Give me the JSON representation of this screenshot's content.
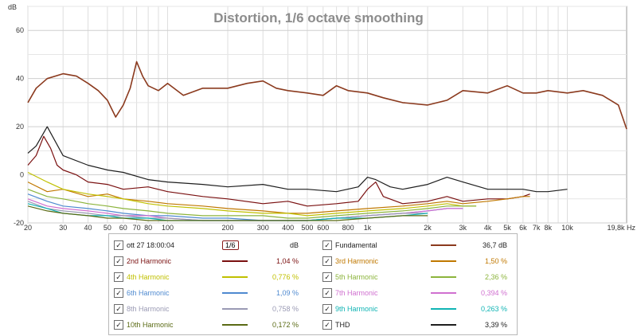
{
  "chart_data": {
    "type": "line",
    "title": "Distortion, 1/6 octave smoothing",
    "ylabel": "dB",
    "xlabel": "",
    "xscale": "log",
    "xlim": [
      20,
      19800
    ],
    "ylim": [
      -20,
      70
    ],
    "y_ticks": [
      60,
      40,
      20,
      0,
      -20
    ],
    "y_tick_labels": [
      "60",
      "40",
      "20",
      "0",
      "-20"
    ],
    "x_ticks": [
      20,
      30,
      40,
      50,
      60,
      70,
      80,
      100,
      200,
      300,
      400,
      500,
      600,
      800,
      1000,
      2000,
      3000,
      4000,
      5000,
      6000,
      7000,
      8000,
      10000,
      19800
    ],
    "x_tick_labels": [
      "20",
      "30",
      "40",
      "50",
      "60",
      "70",
      "80",
      "100",
      "200",
      "300",
      "400",
      "500",
      "600",
      "800",
      "1k",
      "2k",
      "3k",
      "4k",
      "5k",
      "6k",
      "7k",
      "8k",
      "10k",
      "19,8k Hz"
    ],
    "grid": true,
    "series": [
      {
        "name": "Fundamental",
        "color": "#8b3a1e",
        "x": [
          20,
          22,
          25,
          30,
          35,
          40,
          45,
          50,
          55,
          60,
          65,
          70,
          75,
          80,
          90,
          100,
          120,
          150,
          200,
          250,
          300,
          350,
          400,
          500,
          600,
          700,
          800,
          1000,
          1200,
          1500,
          2000,
          2500,
          3000,
          4000,
          5000,
          6000,
          7000,
          8000,
          10000,
          12000,
          15000,
          18000,
          19800
        ],
        "values": [
          30,
          36,
          40,
          42,
          41,
          38,
          35,
          31,
          24,
          29,
          36,
          47,
          41,
          37,
          35,
          38,
          33,
          36,
          36,
          38,
          39,
          36,
          35,
          34,
          33,
          37,
          35,
          34,
          32,
          30,
          29,
          31,
          35,
          34,
          37,
          34,
          34,
          35,
          34,
          35,
          33,
          29,
          19
        ]
      },
      {
        "name": "2nd Harmonic",
        "color": "#7a1010",
        "x": [
          20,
          22,
          24,
          26,
          28,
          30,
          35,
          40,
          50,
          60,
          80,
          100,
          150,
          200,
          300,
          400,
          500,
          700,
          900,
          1000,
          1100,
          1200,
          1500,
          2000,
          2500,
          3000,
          4000,
          5000,
          6000,
          6500
        ],
        "values": [
          4,
          8,
          16,
          11,
          4,
          2,
          0,
          -3,
          -4,
          -6,
          -5,
          -7,
          -9,
          -10,
          -12,
          -11,
          -13,
          -12,
          -11,
          -6,
          -3,
          -9,
          -12,
          -11,
          -9,
          -11,
          -10,
          -10,
          -9,
          -8
        ]
      },
      {
        "name": "3rd Harmonic",
        "color": "#c07800",
        "x": [
          20,
          25,
          30,
          40,
          50,
          60,
          80,
          100,
          150,
          200,
          300,
          400,
          500,
          700,
          1000,
          1500,
          2000,
          2500,
          3000,
          4000,
          5000,
          6000,
          6500
        ],
        "values": [
          -3,
          -7,
          -6,
          -9,
          -8,
          -10,
          -11,
          -12,
          -13,
          -14,
          -15,
          -16,
          -16,
          -15,
          -14,
          -13,
          -12,
          -11,
          -12,
          -11,
          -10,
          -9,
          -9
        ]
      },
      {
        "name": "4th Harmonic",
        "color": "#c0c000",
        "x": [
          20,
          25,
          30,
          40,
          50,
          60,
          80,
          100,
          150,
          200,
          300,
          400,
          500,
          700,
          1000,
          1500,
          2000,
          2500,
          3000,
          3500
        ],
        "values": [
          1,
          -3,
          -6,
          -8,
          -9,
          -10,
          -12,
          -13,
          -14,
          -15,
          -16,
          -16,
          -17,
          -16,
          -15,
          -14,
          -13,
          -12,
          -13,
          -13
        ]
      },
      {
        "name": "5th Harmonic",
        "color": "#8cb43c",
        "x": [
          20,
          25,
          30,
          40,
          50,
          60,
          80,
          100,
          150,
          200,
          300,
          400,
          500,
          700,
          1000,
          1500,
          2000,
          2500,
          3000,
          3500
        ],
        "values": [
          -6,
          -9,
          -10,
          -12,
          -13,
          -14,
          -15,
          -16,
          -17,
          -17,
          -17,
          -18,
          -18,
          -17,
          -16,
          -15,
          -14,
          -13,
          -13,
          -13
        ]
      },
      {
        "name": "6th Harmonic",
        "color": "#4f8ad0",
        "x": [
          20,
          25,
          30,
          40,
          50,
          60,
          80,
          100,
          150,
          200,
          300,
          400,
          500,
          700,
          1000,
          1500,
          2000,
          2500,
          3000
        ],
        "values": [
          -8,
          -11,
          -13,
          -14,
          -15,
          -16,
          -17,
          -17,
          -18,
          -18,
          -19,
          -19,
          -19,
          -18,
          -17,
          -16,
          -15,
          -14,
          -14
        ]
      },
      {
        "name": "7th Harmonic",
        "color": "#d070d0",
        "x": [
          20,
          25,
          30,
          40,
          50,
          60,
          80,
          100,
          150,
          200,
          300,
          400,
          500,
          700,
          1000,
          1500,
          2000,
          2500,
          3000
        ],
        "values": [
          -10,
          -13,
          -14,
          -15,
          -16,
          -17,
          -17,
          -18,
          -19,
          -19,
          -19,
          -19,
          -19,
          -18,
          -17,
          -16,
          -15,
          -14,
          -14
        ]
      },
      {
        "name": "8th Harmonic",
        "color": "#9a9ab4",
        "x": [
          20,
          25,
          30,
          40,
          50,
          60,
          80,
          100,
          150,
          200,
          300,
          400,
          500,
          700,
          1000,
          1500,
          2000
        ],
        "values": [
          -11,
          -14,
          -15,
          -16,
          -17,
          -17,
          -18,
          -18,
          -19,
          -19,
          -19,
          -19,
          -19,
          -18,
          -17,
          -16,
          -16
        ]
      },
      {
        "name": "9th Harmonic",
        "color": "#10b4b4",
        "x": [
          20,
          25,
          30,
          40,
          50,
          60,
          80,
          100,
          150,
          200,
          300,
          400,
          500,
          700,
          1000,
          1500,
          2000
        ],
        "values": [
          -12,
          -14,
          -16,
          -17,
          -17,
          -18,
          -18,
          -19,
          -19,
          -19,
          -19,
          -19,
          -19,
          -18,
          -18,
          -17,
          -16
        ]
      },
      {
        "name": "10th Harmonic",
        "color": "#5a6a14",
        "x": [
          20,
          25,
          30,
          40,
          50,
          60,
          80,
          100,
          150,
          200,
          300,
          400,
          500,
          700,
          1000,
          1500,
          2000
        ],
        "values": [
          -13,
          -15,
          -16,
          -17,
          -18,
          -18,
          -19,
          -19,
          -19,
          -19,
          -19,
          -19,
          -19,
          -19,
          -18,
          -17,
          -17
        ]
      },
      {
        "name": "THD",
        "color": "#1e1e1e",
        "x": [
          20,
          22,
          25,
          30,
          40,
          50,
          60,
          80,
          100,
          150,
          200,
          300,
          400,
          500,
          700,
          900,
          1000,
          1100,
          1300,
          1500,
          2000,
          2500,
          3000,
          4000,
          5000,
          6000,
          7000,
          8000,
          10000
        ],
        "values": [
          9,
          12,
          20,
          8,
          4,
          2,
          1,
          -2,
          -3,
          -4,
          -5,
          -4,
          -6,
          -6,
          -7,
          -5,
          -1,
          -2,
          -5,
          -6,
          -4,
          -1,
          -3,
          -6,
          -6,
          -6,
          -7,
          -7,
          -6
        ]
      }
    ]
  },
  "legend": {
    "rows": [
      [
        {
          "name": "ott 27 18:00:04",
          "value": "dB",
          "color": "#7a1010",
          "smoothing": "1/6",
          "checked": "✓"
        },
        {
          "name": "Fundamental",
          "value": "36,7 dB",
          "color": "#8b3a1e",
          "checked": "✓"
        }
      ],
      [
        {
          "name": "2nd Harmonic",
          "value": "1,04 %",
          "color": "#7a1010",
          "checked": "✓"
        },
        {
          "name": "3rd Harmonic",
          "value": "1,50 %",
          "color": "#c07800",
          "checked": "✓"
        }
      ],
      [
        {
          "name": "4th Harmonic",
          "value": "0,776 %",
          "color": "#c0c000",
          "checked": "✓"
        },
        {
          "name": "5th Harmonic",
          "value": "2,36 %",
          "color": "#8cb43c",
          "checked": "✓"
        }
      ],
      [
        {
          "name": "6th Harmonic",
          "value": "1,09 %",
          "color": "#4f8ad0",
          "checked": "✓"
        },
        {
          "name": "7th Harmonic",
          "value": "0,394 %",
          "color": "#d070d0",
          "checked": "✓"
        }
      ],
      [
        {
          "name": "8th Harmonic",
          "value": "0,758 %",
          "color": "#9a9ab4",
          "checked": "✓"
        },
        {
          "name": "9th Harmonic",
          "value": "0,263 %",
          "color": "#10b4b4",
          "checked": "✓"
        }
      ],
      [
        {
          "name": "10th Harmonic",
          "value": "0,172 %",
          "color": "#5a6a14",
          "checked": "✓"
        },
        {
          "name": "THD",
          "value": "3,39 %",
          "color": "#1e1e1e",
          "checked": "✓"
        }
      ]
    ]
  }
}
